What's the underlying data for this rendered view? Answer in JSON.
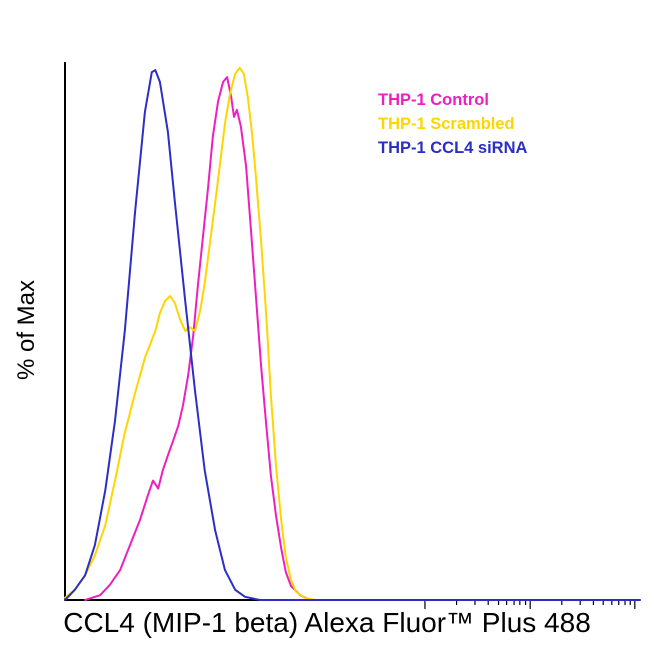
{
  "figure": {
    "background": "#ffffff",
    "axis_color": "#000000"
  },
  "chart_data": {
    "type": "line",
    "subtype": "flow_cytometry_histogram",
    "title": "",
    "xlabel": "CCL4 (MIP-1 beta) Alexa Fluor™ Plus 488",
    "ylabel": "% of Max",
    "grid": false,
    "legend_position": "top-right",
    "ylim": [
      0,
      100
    ],
    "x_axis": {
      "scale": "biexponential-log",
      "tick_labels": [],
      "major_ticks_pct": [
        62.6,
        80.9,
        99.1
      ],
      "minor_ticks_pct": [
        68.1,
        71.3,
        73.6,
        75.4,
        76.8,
        78.1,
        79.1,
        80.1,
        86.4,
        89.6,
        91.9,
        93.6,
        95.1,
        96.3,
        97.4,
        98.3
      ]
    },
    "series": [
      {
        "name": "THP-1 Control",
        "color": "#ee1fc0",
        "points": [
          [
            3.5,
            0
          ],
          [
            6.1,
            0.9
          ],
          [
            7.8,
            2.8
          ],
          [
            9.6,
            5.6
          ],
          [
            11.3,
            10.2
          ],
          [
            13,
            14.8
          ],
          [
            14.4,
            19.4
          ],
          [
            15.3,
            22.2
          ],
          [
            16.2,
            20.7
          ],
          [
            17,
            24.1
          ],
          [
            17.9,
            26.9
          ],
          [
            18.8,
            29.6
          ],
          [
            19.7,
            32.4
          ],
          [
            20.5,
            36.1
          ],
          [
            21.4,
            41.7
          ],
          [
            22.3,
            49.1
          ],
          [
            23.1,
            58.3
          ],
          [
            24,
            67.6
          ],
          [
            24.9,
            76.9
          ],
          [
            25.7,
            86.1
          ],
          [
            26.6,
            92.6
          ],
          [
            27.5,
            96.3
          ],
          [
            28.2,
            97.2
          ],
          [
            28.9,
            93.5
          ],
          [
            29.4,
            89.8
          ],
          [
            29.9,
            91.1
          ],
          [
            30.6,
            88
          ],
          [
            31.5,
            80.6
          ],
          [
            32.3,
            69.4
          ],
          [
            33.2,
            56.5
          ],
          [
            34.1,
            43.5
          ],
          [
            35,
            32.4
          ],
          [
            35.8,
            23.1
          ],
          [
            36.7,
            15.7
          ],
          [
            37.6,
            9.6
          ],
          [
            38.4,
            5.2
          ],
          [
            39.3,
            2.6
          ],
          [
            40.9,
            0.9
          ],
          [
            42.6,
            0
          ],
          [
            100,
            0
          ]
        ]
      },
      {
        "name": "THP-1 Scrambled",
        "color": "#ffd500",
        "points": [
          [
            0,
            0.4
          ],
          [
            1.7,
            1.9
          ],
          [
            3.5,
            4.6
          ],
          [
            5.2,
            8.3
          ],
          [
            7,
            13.9
          ],
          [
            8.7,
            22.2
          ],
          [
            10.4,
            31.1
          ],
          [
            12.2,
            38.5
          ],
          [
            13.9,
            45
          ],
          [
            15.7,
            50
          ],
          [
            16.5,
            53.3
          ],
          [
            17.4,
            55.6
          ],
          [
            18.3,
            56.5
          ],
          [
            19.1,
            55.2
          ],
          [
            20,
            52.2
          ],
          [
            20.9,
            50
          ],
          [
            21.7,
            50.7
          ],
          [
            22.6,
            50
          ],
          [
            23.5,
            53.7
          ],
          [
            24.3,
            58.9
          ],
          [
            25.2,
            66.3
          ],
          [
            26.1,
            73.7
          ],
          [
            27,
            81.5
          ],
          [
            27.8,
            88.5
          ],
          [
            28.7,
            94.1
          ],
          [
            29.6,
            97.8
          ],
          [
            30.4,
            98.9
          ],
          [
            31.1,
            97.8
          ],
          [
            31.8,
            93.5
          ],
          [
            32.5,
            87
          ],
          [
            33.2,
            78.7
          ],
          [
            34.1,
            66.7
          ],
          [
            35,
            52.8
          ],
          [
            35.8,
            38
          ],
          [
            36.7,
            25
          ],
          [
            37.6,
            14.8
          ],
          [
            38.4,
            8
          ],
          [
            39.3,
            3.7
          ],
          [
            40.2,
            1.5
          ],
          [
            41.7,
            0.4
          ],
          [
            43.5,
            0
          ],
          [
            100,
            0
          ]
        ]
      },
      {
        "name": "THP-1 CCL4 siRNA",
        "color": "#2b2fc4",
        "points": [
          [
            0,
            0
          ],
          [
            1.7,
            1.9
          ],
          [
            3.5,
            4.6
          ],
          [
            5.2,
            10.2
          ],
          [
            7,
            20.4
          ],
          [
            8.7,
            33.3
          ],
          [
            10.4,
            50
          ],
          [
            12.2,
            72.2
          ],
          [
            13.9,
            90.7
          ],
          [
            15.1,
            98.1
          ],
          [
            15.7,
            98.5
          ],
          [
            16.5,
            96.3
          ],
          [
            17.9,
            87
          ],
          [
            19.1,
            74.1
          ],
          [
            20.9,
            55.6
          ],
          [
            22.6,
            38.9
          ],
          [
            24.3,
            24.1
          ],
          [
            26.1,
            13
          ],
          [
            27.8,
            5.6
          ],
          [
            29.6,
            1.9
          ],
          [
            31.3,
            0.6
          ],
          [
            33.9,
            0
          ],
          [
            100,
            0
          ]
        ]
      }
    ]
  },
  "legend": {
    "items": [
      {
        "label": "THP-1 Control",
        "color": "#ee1fc0"
      },
      {
        "label": "THP-1 Scrambled",
        "color": "#ffd500"
      },
      {
        "label": "THP-1 CCL4 siRNA",
        "color": "#2b2fc4"
      }
    ]
  }
}
